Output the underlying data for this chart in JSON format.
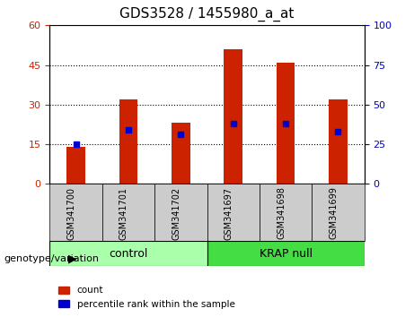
{
  "title": "GDS3528 / 1455980_a_at",
  "categories": [
    "GSM341700",
    "GSM341701",
    "GSM341702",
    "GSM341697",
    "GSM341698",
    "GSM341699"
  ],
  "red_values": [
    14,
    32,
    23,
    51,
    46,
    32
  ],
  "blue_values": [
    25,
    34,
    31,
    38,
    38,
    33
  ],
  "ylim_left": [
    0,
    60
  ],
  "ylim_right": [
    0,
    100
  ],
  "yticks_left": [
    0,
    15,
    30,
    45,
    60
  ],
  "yticks_right": [
    0,
    25,
    50,
    75,
    100
  ],
  "group_labels": [
    "control",
    "KRAP null"
  ],
  "genotype_label": "genotype/variation",
  "legend_red": "count",
  "legend_blue": "percentile rank within the sample",
  "bar_color": "#cc2200",
  "dot_color": "#0000cc",
  "control_bg": "#aaffaa",
  "krap_bg": "#44dd44",
  "xlabel_area_bg": "#cccccc",
  "grid_color": "#000000"
}
